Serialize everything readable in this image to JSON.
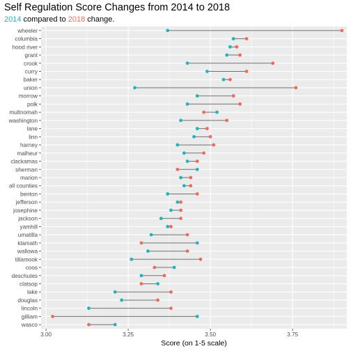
{
  "title": "Self Regulation Score Changes from 2014 to 2018",
  "subtitle": {
    "year_a": "2014",
    "middle": " compared to ",
    "year_b": "2018",
    "end": " change."
  },
  "colors": {
    "year_2014": "#1FB5BD",
    "year_2018": "#EF6A5E",
    "segment": "#6e6e6e",
    "panel": "#EBEBEB",
    "grid": "#ffffff"
  },
  "chart_data": {
    "type": "dumbbell",
    "title": "Self Regulation Score Changes from 2014 to 2018",
    "xlabel": "Score (on 1-5 scale)",
    "ylabel": "",
    "xlim": [
      2.985,
      3.915
    ],
    "x_ticks": [
      3.0,
      3.25,
      3.5,
      3.75
    ],
    "x_tick_labels": [
      "3.00",
      "3.25",
      "3.50",
      "3.75"
    ],
    "grid": true,
    "series": [
      {
        "name": "2014",
        "color": "#1FB5BD"
      },
      {
        "name": "2018",
        "color": "#EF6A5E"
      }
    ],
    "categories": [
      "wheeler",
      "columbia",
      "hood river",
      "grant",
      "crook",
      "curry",
      "baker",
      "union",
      "morrow",
      "polk",
      "multnomah",
      "washington",
      "lane",
      "linn",
      "harney",
      "malheur",
      "clackamas",
      "sherman",
      "marion",
      "all counties",
      "benton",
      "jefferson",
      "josephine",
      "jackson",
      "yamhill",
      "umatilla",
      "klamath",
      "wallowa",
      "tillamook",
      "coos",
      "deschutes",
      "clatsop",
      "lake",
      "douglas",
      "lincoln",
      "gilliam",
      "wasco"
    ],
    "values_2014": [
      3.37,
      3.57,
      3.56,
      3.55,
      3.43,
      3.49,
      3.54,
      3.27,
      3.46,
      3.43,
      3.52,
      3.41,
      3.46,
      3.45,
      3.4,
      3.42,
      3.43,
      3.46,
      3.41,
      3.42,
      3.37,
      3.4,
      3.38,
      3.35,
      3.37,
      3.32,
      3.46,
      3.31,
      3.26,
      3.39,
      3.29,
      3.34,
      3.21,
      3.23,
      3.13,
      3.46,
      3.21
    ],
    "values_2018": [
      3.9,
      3.61,
      3.58,
      3.59,
      3.69,
      3.61,
      3.56,
      3.76,
      3.57,
      3.59,
      3.48,
      3.55,
      3.49,
      3.5,
      3.51,
      3.48,
      3.46,
      3.4,
      3.44,
      3.44,
      3.46,
      3.41,
      3.41,
      3.41,
      3.38,
      3.43,
      3.29,
      3.43,
      3.47,
      3.33,
      3.36,
      3.29,
      3.38,
      3.34,
      3.38,
      3.02,
      3.13
    ]
  }
}
